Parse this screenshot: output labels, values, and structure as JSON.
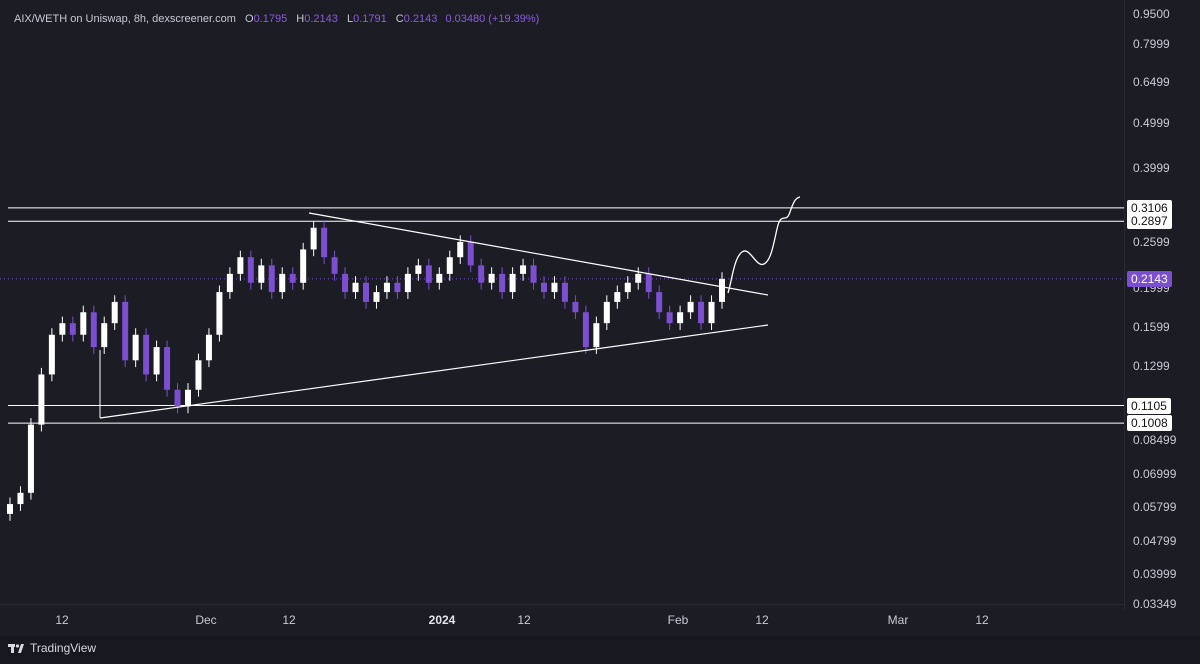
{
  "legend": {
    "symbol": "AIX/WETH on Uniswap, 8h, dexscreener.com",
    "open_label": "O",
    "open": "0.1795",
    "high_label": "H",
    "high": "0.2143",
    "low_label": "L",
    "low": "0.1791",
    "close_label": "C",
    "close": "0.2143",
    "change": "0.03480 (+19.39%)"
  },
  "price_scale": {
    "ticks": [
      "0.9500",
      "0.7999",
      "0.6499",
      "0.4999",
      "0.3999",
      "0.2599",
      "0.1999",
      "0.1599",
      "0.1299",
      "0.08499",
      "0.06999",
      "0.05799",
      "0.04799",
      "0.03999",
      "0.03349"
    ],
    "boxes": [
      {
        "label": "0.3106",
        "kind": "level"
      },
      {
        "label": "0.2897",
        "kind": "level"
      },
      {
        "label": "0.2143",
        "kind": "current"
      },
      {
        "label": "0.1105",
        "kind": "level"
      },
      {
        "label": "0.1008",
        "kind": "level"
      }
    ]
  },
  "time_scale": {
    "ticks": [
      {
        "label": "12",
        "bold": false
      },
      {
        "label": "Dec",
        "bold": false
      },
      {
        "label": "12",
        "bold": false
      },
      {
        "label": "2024",
        "bold": true
      },
      {
        "label": "12",
        "bold": false
      },
      {
        "label": "Feb",
        "bold": false
      },
      {
        "label": "12",
        "bold": false
      },
      {
        "label": "Mar",
        "bold": false
      },
      {
        "label": "12",
        "bold": false
      }
    ]
  },
  "footer": {
    "brand": "TradingView"
  },
  "colors": {
    "background": "#1c1c25",
    "candle_up": "#ffffff",
    "candle_down": "#7b4fd0",
    "drawing": "#ffffff",
    "current_price": "#7b4fd0"
  },
  "chart_data": {
    "type": "candlestick",
    "pair": "AIX/WETH",
    "interval": "8h",
    "y_scale": "log",
    "ylim": [
      0.03349,
      0.95
    ],
    "horizontal_levels": [
      0.3106,
      0.2897,
      0.1105,
      0.1008
    ],
    "current_price": 0.2143,
    "closes_approx": [
      0.066,
      0.07,
      0.1,
      0.13,
      0.16,
      0.17,
      0.16,
      0.18,
      0.15,
      0.17,
      0.19,
      0.14,
      0.16,
      0.13,
      0.15,
      0.12,
      0.11,
      0.12,
      0.14,
      0.16,
      0.2,
      0.22,
      0.24,
      0.21,
      0.23,
      0.2,
      0.22,
      0.21,
      0.25,
      0.28,
      0.24,
      0.22,
      0.2,
      0.21,
      0.19,
      0.2,
      0.21,
      0.2,
      0.22,
      0.23,
      0.21,
      0.22,
      0.24,
      0.26,
      0.23,
      0.21,
      0.22,
      0.2,
      0.22,
      0.23,
      0.21,
      0.2,
      0.21,
      0.19,
      0.18,
      0.15,
      0.17,
      0.19,
      0.2,
      0.21,
      0.22,
      0.2,
      0.18,
      0.17,
      0.18,
      0.19,
      0.17,
      0.19,
      0.2143
    ]
  }
}
